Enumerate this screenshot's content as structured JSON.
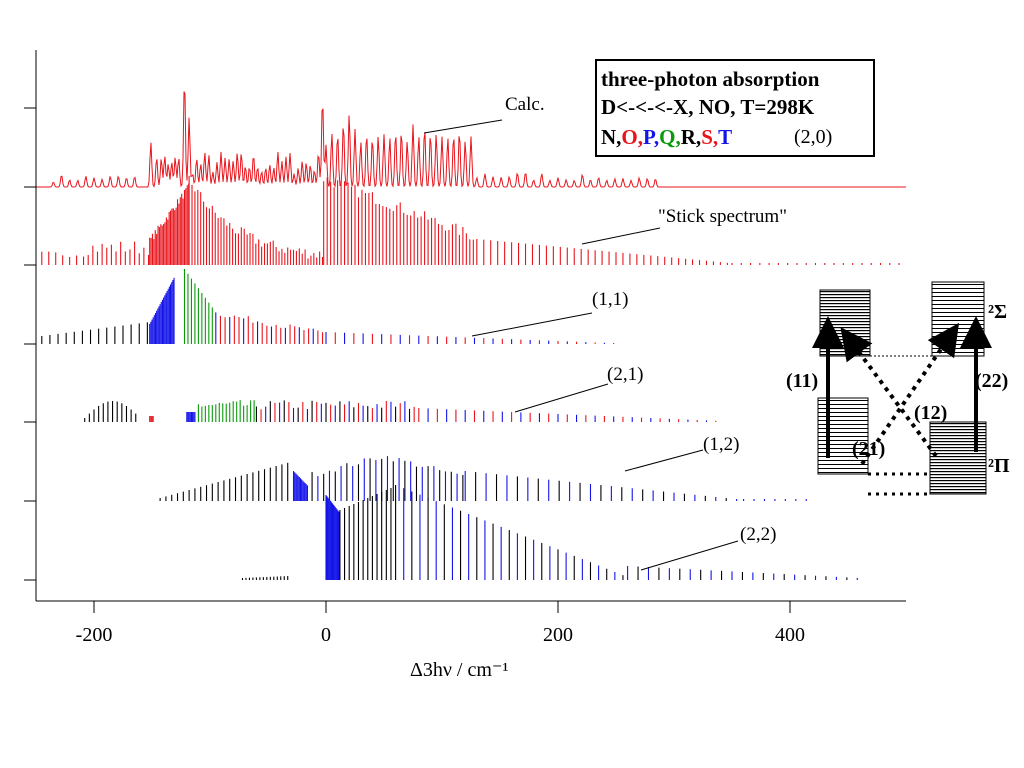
{
  "chart_data": {
    "type": "line",
    "xlabel": "Δ3hν / cm⁻¹",
    "xlim": [
      -250,
      500
    ],
    "x_ticks": [
      -200,
      0,
      200,
      400
    ],
    "grid": false,
    "legend": {
      "position": "top-right",
      "title": "three-photon absorption",
      "line2_main": "D<-<-<-X, NO",
      "line2_temp": ", T=298K",
      "branches": [
        {
          "label": "N",
          "color": "#000000"
        },
        {
          "label": "O",
          "color": "#e8141c"
        },
        {
          "label": "P",
          "color": "#1414e8"
        },
        {
          "label": "Q",
          "color": "#0a9a0a"
        },
        {
          "label": "R",
          "color": "#000000"
        },
        {
          "label": "S",
          "color": "#e8141c"
        },
        {
          "label": "T",
          "color": "#1414e8"
        }
      ],
      "band": "(2,0)"
    },
    "series": [
      {
        "name": "Calc.",
        "kind": "line",
        "color": "#e8141c"
      },
      {
        "name": "\"Stick spectrum\"",
        "kind": "sticks",
        "color": "#e8141c"
      },
      {
        "name": "(1,1)",
        "kind": "sticks"
      },
      {
        "name": "(2,1)",
        "kind": "sticks"
      },
      {
        "name": "(1,2)",
        "kind": "sticks"
      },
      {
        "name": "(2,2)",
        "kind": "sticks"
      }
    ],
    "diagram": {
      "upper_state": "²Σ",
      "lower_state": "²Π",
      "transitions": [
        "(11)",
        "(22)",
        "(12)",
        "(21)"
      ]
    }
  }
}
